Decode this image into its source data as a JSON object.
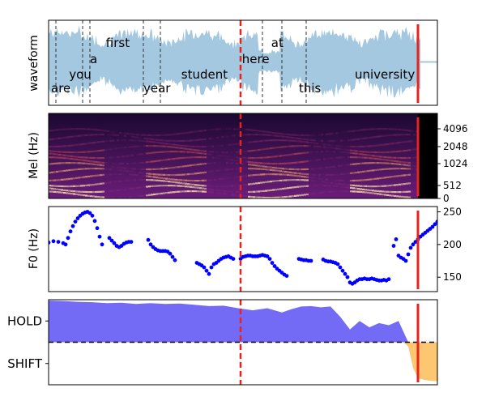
{
  "chart_data": [
    {
      "type": "line",
      "panel": "waveform",
      "ylabel": "waveform",
      "xlim": [
        0,
        8.0
      ],
      "words": [
        {
          "text": "are",
          "x": 0.05,
          "level": 3
        },
        {
          "text": "you",
          "x": 0.42,
          "level": 2
        },
        {
          "text": "a",
          "x": 0.85,
          "level": 1
        },
        {
          "text": "first",
          "x": 1.18,
          "level": 0
        },
        {
          "text": "year",
          "x": 1.95,
          "level": 3
        },
        {
          "text": "student",
          "x": 2.73,
          "level": 2
        },
        {
          "text": "here",
          "x": 3.98,
          "level": 1
        },
        {
          "text": "at",
          "x": 4.58,
          "level": 0
        },
        {
          "text": "this",
          "x": 5.15,
          "level": 3
        },
        {
          "text": "university",
          "x": 6.3,
          "level": 2
        }
      ],
      "word_boundaries": [
        0.15,
        0.7,
        0.85,
        1.95,
        2.3,
        4.4,
        4.8,
        5.3
      ],
      "current_time": 3.95,
      "end_time": 7.6,
      "speech_end": 7.65,
      "wave_color": "#a5c8e1"
    },
    {
      "type": "heatmap",
      "panel": "mel",
      "ylabel": "Mel (Hz)",
      "yticks": [
        0,
        512,
        1024,
        2048,
        4096
      ],
      "xlim": [
        0,
        8.0
      ],
      "current_time": 3.95,
      "end_time": 7.6
    },
    {
      "type": "scatter",
      "panel": "f0",
      "ylabel": "F0 (Hz)",
      "yticks": [
        150,
        200,
        250
      ],
      "ylim": [
        128,
        258
      ],
      "xlim": [
        0,
        8.0
      ],
      "current_time": 3.95,
      "end_time": 7.6,
      "point_color": "#0000ff",
      "segments": [
        {
          "x": [
            0.0,
            0.1,
            0.2,
            0.3,
            0.35
          ],
          "y": [
            203,
            205,
            204,
            202,
            200
          ]
        },
        {
          "x": [
            0.4,
            0.45,
            0.5,
            0.55,
            0.6,
            0.65,
            0.7,
            0.75,
            0.8,
            0.85,
            0.9,
            0.95,
            1.0,
            1.05,
            1.1
          ],
          "y": [
            210,
            220,
            228,
            235,
            240,
            244,
            247,
            249,
            250,
            248,
            244,
            236,
            225,
            212,
            200
          ]
        },
        {
          "x": [
            1.25,
            1.3,
            1.35,
            1.4,
            1.45,
            1.5,
            1.55,
            1.6,
            1.65,
            1.7
          ],
          "y": [
            210,
            206,
            202,
            198,
            196,
            198,
            201,
            203,
            204,
            204
          ]
        },
        {
          "x": [
            2.05,
            2.1,
            2.15,
            2.2,
            2.25,
            2.3,
            2.35,
            2.4,
            2.45,
            2.5,
            2.55,
            2.6
          ],
          "y": [
            207,
            200,
            196,
            193,
            191,
            190,
            190,
            190,
            189,
            186,
            181,
            176
          ]
        },
        {
          "x": [
            3.05,
            3.1,
            3.15,
            3.2,
            3.25,
            3.3,
            3.35,
            3.4,
            3.45,
            3.5,
            3.55,
            3.6,
            3.65,
            3.7,
            3.75,
            3.8
          ],
          "y": [
            172,
            170,
            168,
            165,
            160,
            155,
            165,
            170,
            172,
            175,
            178,
            180,
            181,
            182,
            180,
            178
          ]
        },
        {
          "x": [
            3.95,
            4.0,
            4.05,
            4.1,
            4.15,
            4.2,
            4.25,
            4.3,
            4.35,
            4.4,
            4.45,
            4.5,
            4.55,
            4.6,
            4.65,
            4.7,
            4.75,
            4.8,
            4.85,
            4.9
          ],
          "y": [
            178,
            181,
            182,
            183,
            183,
            182,
            182,
            182,
            183,
            184,
            183,
            182,
            178,
            172,
            167,
            163,
            160,
            157,
            154,
            152
          ]
        },
        {
          "x": [
            5.15,
            5.2,
            5.25,
            5.3,
            5.35,
            5.4
          ],
          "y": [
            178,
            177,
            176,
            176,
            175,
            175
          ]
        },
        {
          "x": [
            5.65,
            5.7,
            5.75,
            5.8,
            5.85,
            5.9,
            5.95,
            6.0,
            6.05,
            6.1,
            6.15,
            6.2,
            6.25,
            6.3,
            6.35,
            6.4,
            6.45,
            6.5,
            6.55,
            6.6,
            6.65,
            6.7,
            6.75,
            6.8,
            6.85,
            6.9,
            6.95,
            7.0
          ],
          "y": [
            177,
            175,
            174,
            174,
            173,
            172,
            170,
            165,
            160,
            155,
            150,
            142,
            140,
            142,
            145,
            147,
            147,
            148,
            147,
            147,
            148,
            147,
            146,
            145,
            145,
            146,
            145,
            147
          ]
        },
        {
          "x": [
            7.1,
            7.15,
            7.2,
            7.25,
            7.3,
            7.35,
            7.4,
            7.45,
            7.5,
            7.55,
            7.6,
            7.65,
            7.7,
            7.75,
            7.8,
            7.85,
            7.9,
            7.95,
            8.0
          ],
          "y": [
            198,
            208,
            183,
            180,
            178,
            175,
            185,
            195,
            200,
            204,
            208,
            212,
            215,
            218,
            221,
            224,
            227,
            231,
            235
          ]
        }
      ]
    },
    {
      "type": "area",
      "panel": "turn",
      "categories": [
        "HOLD",
        "SHIFT"
      ],
      "xlim": [
        0,
        8.0
      ],
      "ylim": [
        -1,
        1
      ],
      "threshold": 0,
      "current_time": 3.95,
      "end_time": 7.6,
      "hold_color": "#6b63f5",
      "shift_color": "#fdc469",
      "series": [
        {
          "x": [
            0.0,
            0.3,
            0.6,
            0.9,
            1.2,
            1.5,
            1.8,
            2.1,
            2.4,
            2.7,
            3.0,
            3.3,
            3.6,
            3.9,
            4.2,
            4.5,
            4.8,
            5.0,
            5.2,
            5.4,
            5.6,
            5.8,
            6.0,
            6.2,
            6.4,
            6.6,
            6.8,
            7.0,
            7.2,
            7.3,
            7.4,
            7.5,
            7.6,
            7.8,
            8.0
          ],
          "values": [
            0.98,
            0.97,
            0.95,
            0.94,
            0.92,
            0.93,
            0.9,
            0.92,
            0.9,
            0.91,
            0.88,
            0.85,
            0.86,
            0.8,
            0.75,
            0.8,
            0.7,
            0.78,
            0.84,
            0.85,
            0.82,
            0.84,
            0.6,
            0.3,
            0.5,
            0.35,
            0.45,
            0.4,
            0.5,
            0.25,
            -0.1,
            -0.6,
            -0.85,
            -0.9,
            -0.92
          ]
        }
      ]
    }
  ]
}
